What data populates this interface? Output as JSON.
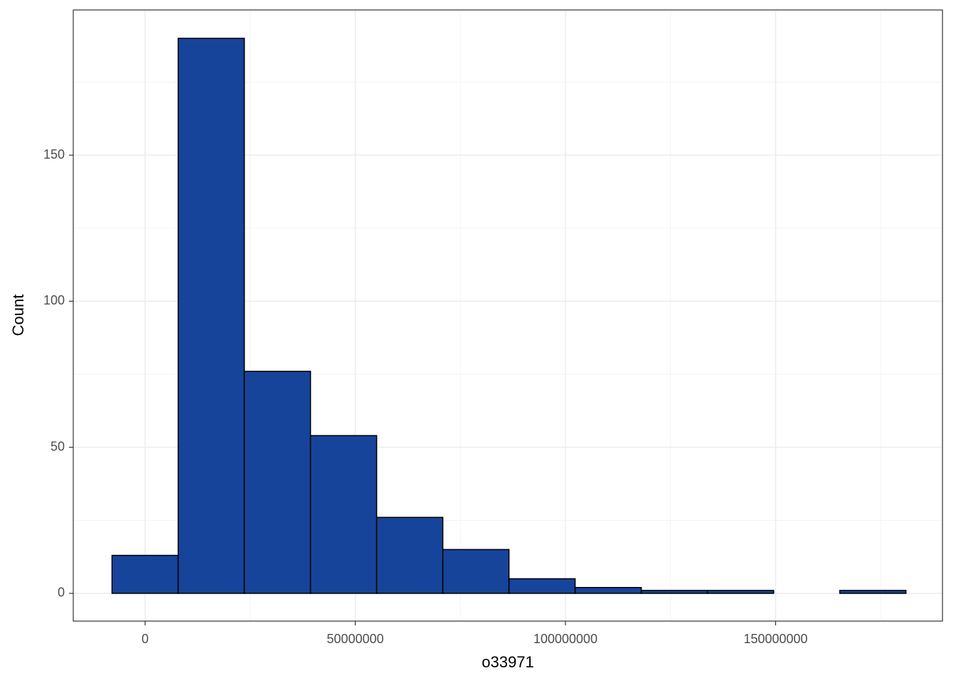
{
  "chart_data": {
    "type": "histogram",
    "x_label": "o33971",
    "y_label": "Count",
    "bins": [
      -7870000,
      7870000,
      23610000,
      39350000,
      55090000,
      70830000,
      86570000,
      102310000,
      118050000,
      133790000,
      149530000,
      165270000,
      181010000
    ],
    "values": [
      13,
      190,
      76,
      54,
      26,
      15,
      5,
      2,
      1,
      1,
      0,
      1
    ],
    "color": "#17449b",
    "edge_color": "#000000",
    "xlim": [
      -17090000,
      189700000
    ],
    "ylim": [
      -9.5,
      199.7
    ],
    "xticks": [
      0,
      50000000,
      100000000,
      150000000
    ],
    "yticks": [
      0,
      50,
      100,
      150
    ],
    "grid": true
  }
}
